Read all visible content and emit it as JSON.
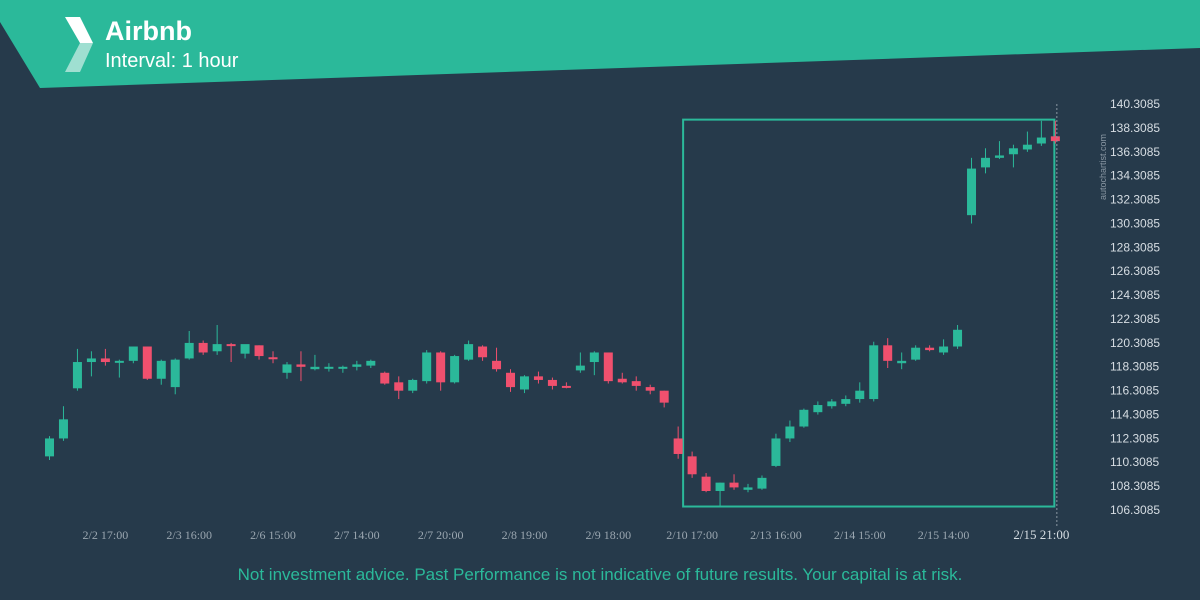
{
  "header": {
    "title": "Airbnb",
    "subtitle": "Interval: 1 hour",
    "logo_icon": "autochartist-logo-icon",
    "banner_color": "#2bb99a"
  },
  "watermark": "autochartist.com",
  "disclaimer": "Not investment advice. Past Performance is not indicative of future results. Your capital is at risk.",
  "colors": {
    "background": "#263a4b",
    "up": "#2bb99a",
    "down": "#f0506e",
    "pattern_box": "#2bb99a"
  },
  "chart_data": {
    "type": "candlestick",
    "title": "Airbnb",
    "interval": "1 hour",
    "ylim": [
      106.3085,
      140.3085
    ],
    "y_ticks": [
      "140.3085",
      "138.3085",
      "136.3085",
      "134.3085",
      "132.3085",
      "130.3085",
      "128.3085",
      "126.3085",
      "124.3085",
      "122.3085",
      "120.3085",
      "118.3085",
      "116.3085",
      "114.3085",
      "112.3085",
      "110.3085",
      "108.3085",
      "106.3085"
    ],
    "x_ticks": [
      {
        "label": "2/2 17:00",
        "index": 4
      },
      {
        "label": "2/3 16:00",
        "index": 10
      },
      {
        "label": "2/6 15:00",
        "index": 16
      },
      {
        "label": "2/7 14:00",
        "index": 22
      },
      {
        "label": "2/7 20:00",
        "index": 28
      },
      {
        "label": "2/8 19:00",
        "index": 34
      },
      {
        "label": "2/9 18:00",
        "index": 40
      },
      {
        "label": "2/10 17:00",
        "index": 46
      },
      {
        "label": "2/13 16:00",
        "index": 52
      },
      {
        "label": "2/14 15:00",
        "index": 58
      },
      {
        "label": "2/15 14:00",
        "index": 64
      },
      {
        "label": "2/15 21:00",
        "index": 71
      }
    ],
    "pattern_box": {
      "start_index": 46,
      "end_index": 72,
      "top": 139.0,
      "bottom": 106.6
    },
    "candles": [
      {
        "o": 110.8,
        "h": 112.5,
        "l": 110.5,
        "c": 112.3
      },
      {
        "o": 112.3,
        "h": 115.0,
        "l": 112.1,
        "c": 113.9
      },
      {
        "o": 116.5,
        "h": 119.8,
        "l": 116.3,
        "c": 118.7
      },
      {
        "o": 118.7,
        "h": 119.6,
        "l": 117.5,
        "c": 119.0
      },
      {
        "o": 119.0,
        "h": 119.8,
        "l": 118.4,
        "c": 118.7
      },
      {
        "o": 118.8,
        "h": 118.9,
        "l": 117.4,
        "c": 118.8
      },
      {
        "o": 118.8,
        "h": 120.0,
        "l": 118.6,
        "c": 120.0
      },
      {
        "o": 120.0,
        "h": 120.0,
        "l": 117.2,
        "c": 117.3
      },
      {
        "o": 117.3,
        "h": 118.9,
        "l": 116.8,
        "c": 118.8
      },
      {
        "o": 116.6,
        "h": 119.0,
        "l": 116.0,
        "c": 118.9
      },
      {
        "o": 119.0,
        "h": 121.3,
        "l": 118.9,
        "c": 120.3
      },
      {
        "o": 120.3,
        "h": 120.5,
        "l": 119.3,
        "c": 119.5
      },
      {
        "o": 119.6,
        "h": 121.8,
        "l": 119.3,
        "c": 120.2
      },
      {
        "o": 120.2,
        "h": 120.3,
        "l": 118.7,
        "c": 120.1
      },
      {
        "o": 119.4,
        "h": 120.0,
        "l": 119.0,
        "c": 120.2
      },
      {
        "o": 120.1,
        "h": 120.1,
        "l": 118.9,
        "c": 119.2
      },
      {
        "o": 119.1,
        "h": 119.6,
        "l": 118.6,
        "c": 119.0
      },
      {
        "o": 117.8,
        "h": 118.7,
        "l": 117.3,
        "c": 118.5
      },
      {
        "o": 118.5,
        "h": 119.6,
        "l": 117.1,
        "c": 118.3
      },
      {
        "o": 118.1,
        "h": 119.3,
        "l": 118.0,
        "c": 118.3
      },
      {
        "o": 118.2,
        "h": 118.6,
        "l": 117.9,
        "c": 118.3
      },
      {
        "o": 118.3,
        "h": 118.4,
        "l": 117.8,
        "c": 118.3
      },
      {
        "o": 118.3,
        "h": 118.8,
        "l": 118.0,
        "c": 118.5
      },
      {
        "o": 118.4,
        "h": 118.9,
        "l": 118.2,
        "c": 118.8
      },
      {
        "o": 117.8,
        "h": 117.9,
        "l": 116.8,
        "c": 116.9
      },
      {
        "o": 117.0,
        "h": 117.5,
        "l": 115.6,
        "c": 116.3
      },
      {
        "o": 116.3,
        "h": 117.3,
        "l": 116.1,
        "c": 117.2
      },
      {
        "o": 117.1,
        "h": 119.7,
        "l": 116.9,
        "c": 119.5
      },
      {
        "o": 119.5,
        "h": 119.6,
        "l": 116.3,
        "c": 117.0
      },
      {
        "o": 117.0,
        "h": 119.3,
        "l": 116.9,
        "c": 119.2
      },
      {
        "o": 118.9,
        "h": 120.5,
        "l": 118.8,
        "c": 120.2
      },
      {
        "o": 120.0,
        "h": 120.1,
        "l": 118.8,
        "c": 119.1
      },
      {
        "o": 118.8,
        "h": 119.9,
        "l": 117.9,
        "c": 118.1
      },
      {
        "o": 117.8,
        "h": 118.1,
        "l": 116.2,
        "c": 116.6
      },
      {
        "o": 116.4,
        "h": 117.6,
        "l": 116.1,
        "c": 117.5
      },
      {
        "o": 117.5,
        "h": 117.9,
        "l": 116.9,
        "c": 117.2
      },
      {
        "o": 117.2,
        "h": 117.4,
        "l": 116.4,
        "c": 116.7
      },
      {
        "o": 116.7,
        "h": 117.0,
        "l": 116.5,
        "c": 116.6
      },
      {
        "o": 118.0,
        "h": 119.5,
        "l": 117.8,
        "c": 118.4
      },
      {
        "o": 118.7,
        "h": 119.6,
        "l": 117.6,
        "c": 119.5
      },
      {
        "o": 119.5,
        "h": 119.5,
        "l": 116.9,
        "c": 117.1
      },
      {
        "o": 117.3,
        "h": 117.8,
        "l": 116.9,
        "c": 117.0
      },
      {
        "o": 117.1,
        "h": 117.5,
        "l": 116.3,
        "c": 116.7
      },
      {
        "o": 116.6,
        "h": 116.8,
        "l": 116.0,
        "c": 116.3
      },
      {
        "o": 116.3,
        "h": 116.3,
        "l": 114.9,
        "c": 115.3
      },
      {
        "o": 112.3,
        "h": 113.3,
        "l": 110.6,
        "c": 111.0
      },
      {
        "o": 110.8,
        "h": 111.2,
        "l": 109.0,
        "c": 109.3
      },
      {
        "o": 109.1,
        "h": 109.4,
        "l": 107.8,
        "c": 107.9
      },
      {
        "o": 107.9,
        "h": 108.6,
        "l": 106.6,
        "c": 108.6
      },
      {
        "o": 108.6,
        "h": 109.3,
        "l": 108.0,
        "c": 108.2
      },
      {
        "o": 108.0,
        "h": 108.5,
        "l": 107.8,
        "c": 108.2
      },
      {
        "o": 108.1,
        "h": 109.2,
        "l": 108.0,
        "c": 109.0
      },
      {
        "o": 110.0,
        "h": 112.7,
        "l": 109.9,
        "c": 112.3
      },
      {
        "o": 112.3,
        "h": 113.8,
        "l": 112.0,
        "c": 113.3
      },
      {
        "o": 113.3,
        "h": 114.8,
        "l": 113.2,
        "c": 114.7
      },
      {
        "o": 114.5,
        "h": 115.4,
        "l": 114.3,
        "c": 115.1
      },
      {
        "o": 115.0,
        "h": 115.6,
        "l": 114.8,
        "c": 115.4
      },
      {
        "o": 115.2,
        "h": 115.9,
        "l": 115.0,
        "c": 115.6
      },
      {
        "o": 115.6,
        "h": 117.0,
        "l": 115.3,
        "c": 116.3
      },
      {
        "o": 115.6,
        "h": 120.4,
        "l": 115.4,
        "c": 120.1
      },
      {
        "o": 120.1,
        "h": 120.7,
        "l": 118.2,
        "c": 118.8
      },
      {
        "o": 118.6,
        "h": 119.5,
        "l": 118.1,
        "c": 118.8
      },
      {
        "o": 118.9,
        "h": 120.1,
        "l": 118.8,
        "c": 119.9
      },
      {
        "o": 119.9,
        "h": 120.1,
        "l": 119.6,
        "c": 119.7
      },
      {
        "o": 119.5,
        "h": 120.6,
        "l": 119.3,
        "c": 120.0
      },
      {
        "o": 120.0,
        "h": 121.8,
        "l": 119.8,
        "c": 121.4
      },
      {
        "o": 131.0,
        "h": 135.8,
        "l": 130.3,
        "c": 134.9
      },
      {
        "o": 135.0,
        "h": 136.6,
        "l": 134.5,
        "c": 135.8
      },
      {
        "o": 135.8,
        "h": 137.2,
        "l": 135.7,
        "c": 136.0
      },
      {
        "o": 136.1,
        "h": 136.9,
        "l": 135.0,
        "c": 136.6
      },
      {
        "o": 136.5,
        "h": 138.0,
        "l": 136.3,
        "c": 136.9
      },
      {
        "o": 137.0,
        "h": 138.9,
        "l": 136.8,
        "c": 137.5
      },
      {
        "o": 137.6,
        "h": 138.9,
        "l": 137.0,
        "c": 137.2
      }
    ]
  }
}
